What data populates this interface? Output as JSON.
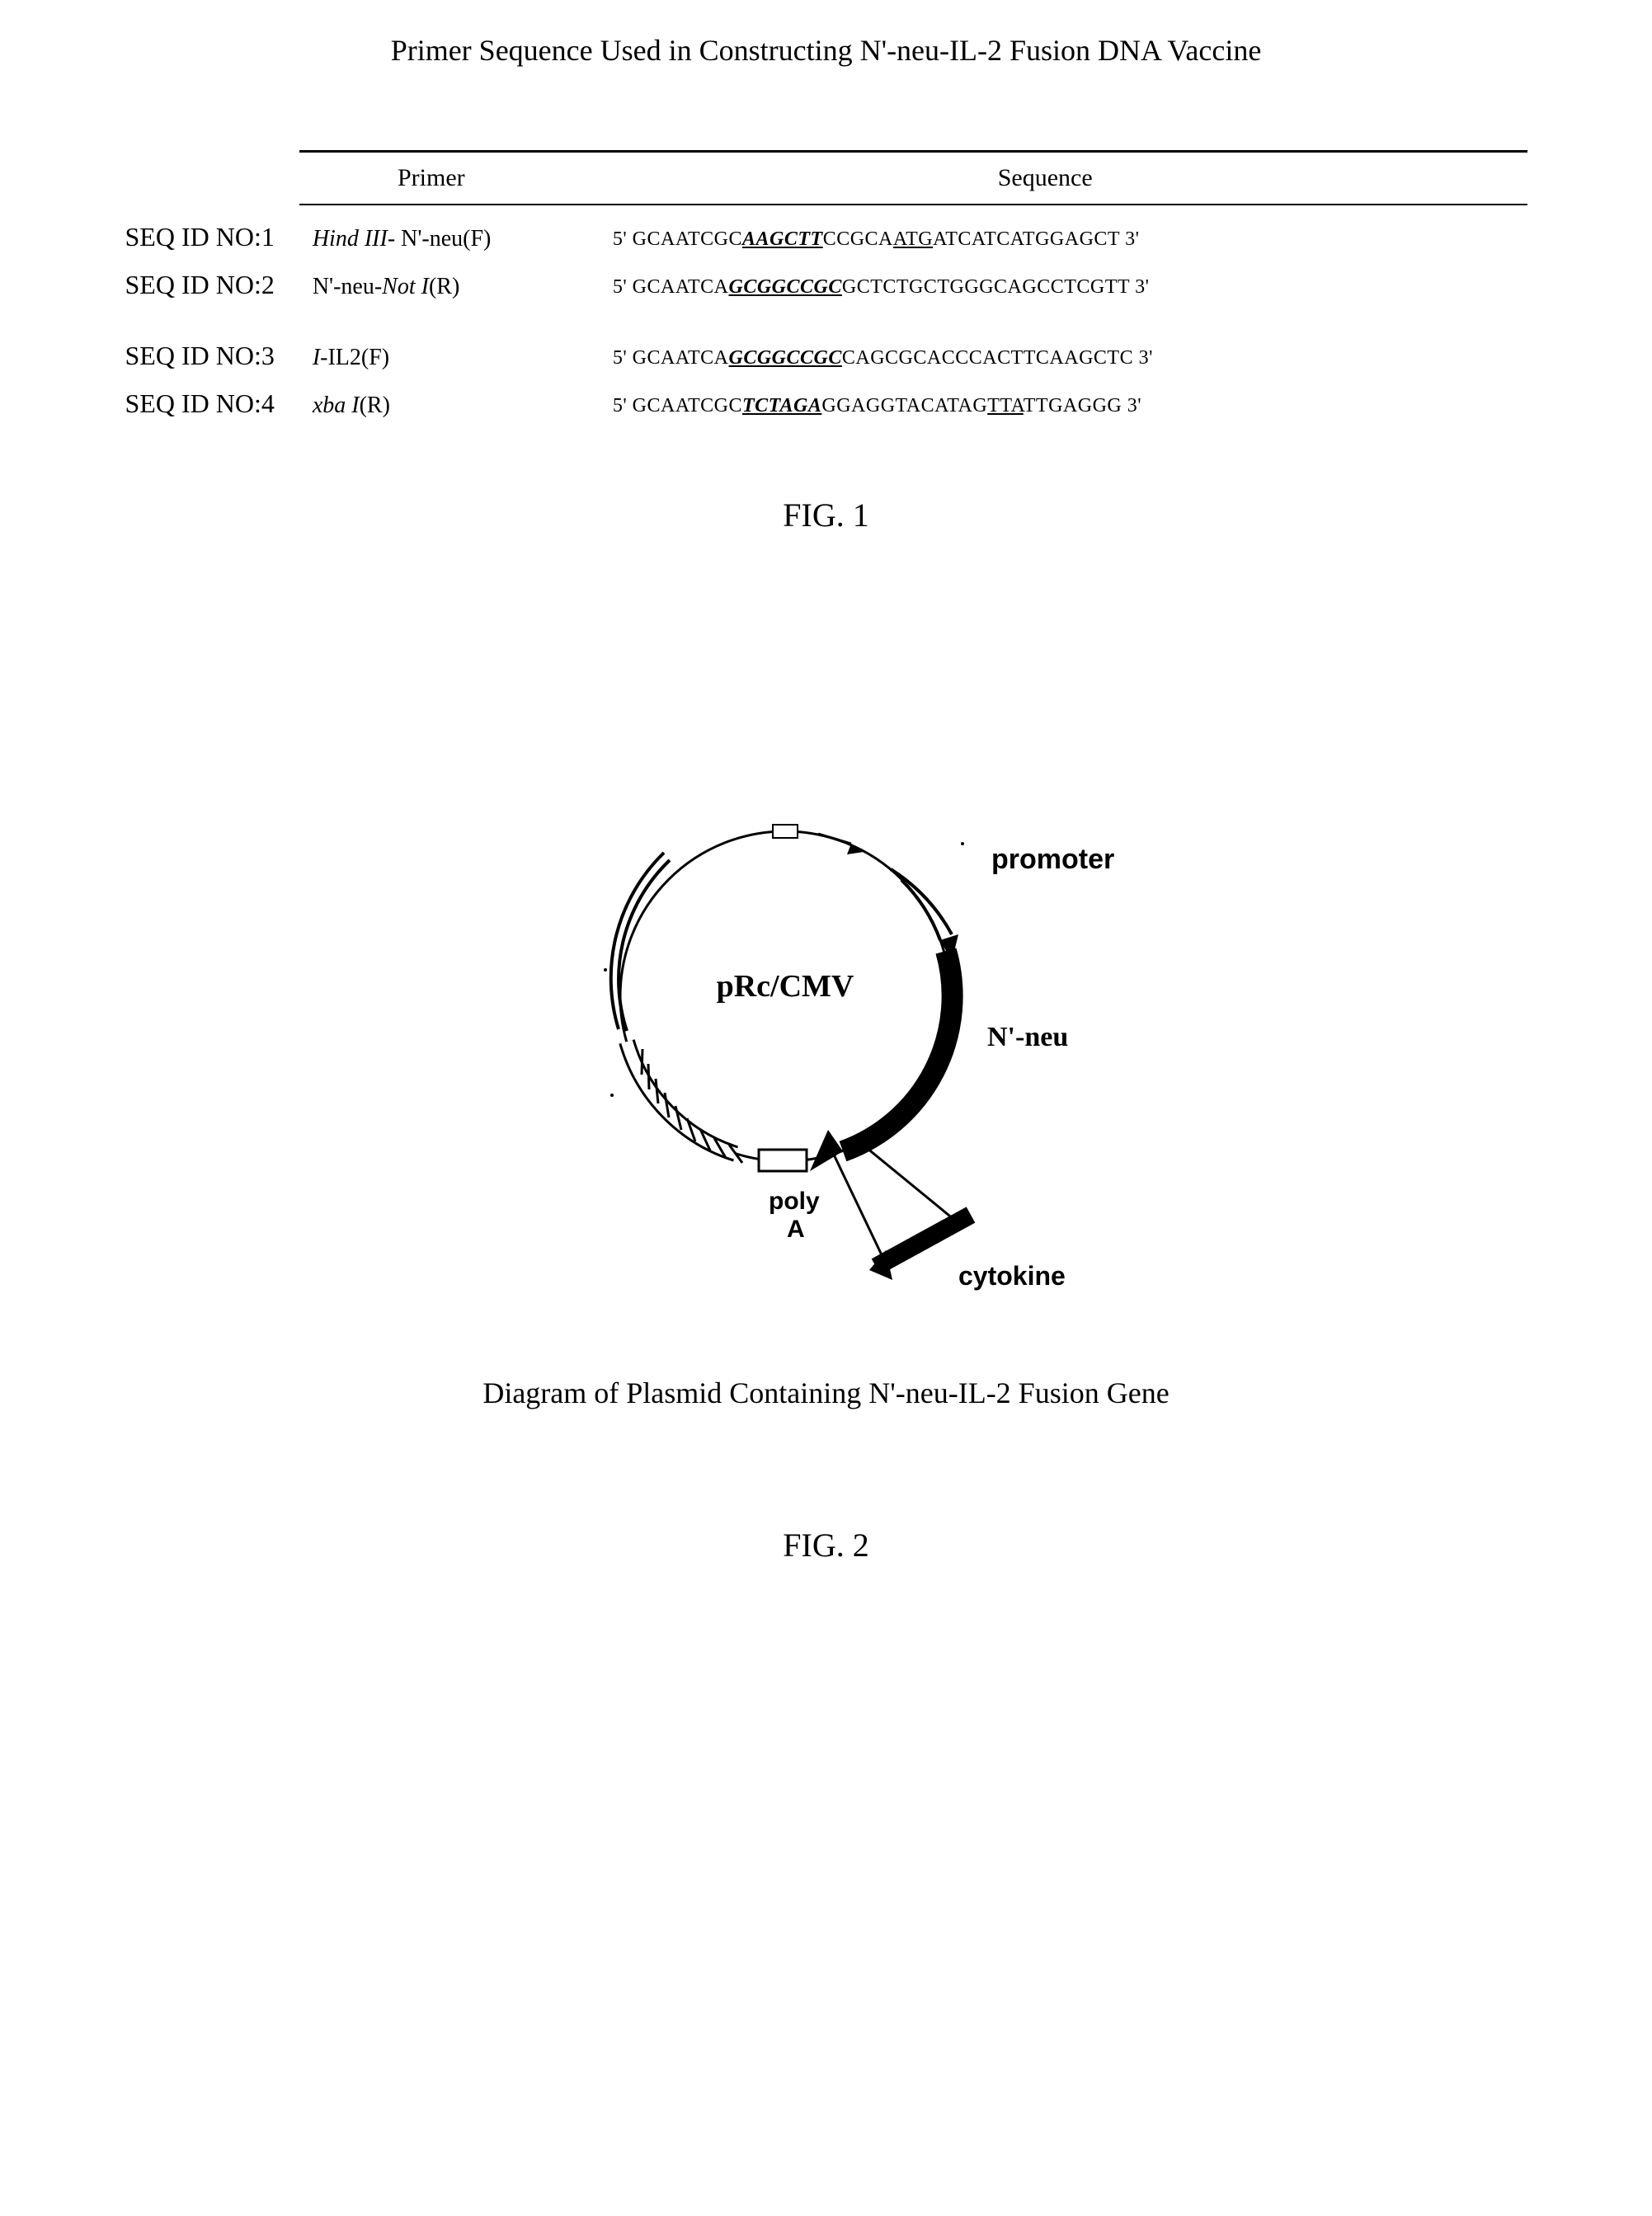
{
  "title": "Primer Sequence Used in Constructing N'-neu-IL-2 Fusion DNA Vaccine",
  "table": {
    "header": {
      "col1": "Primer",
      "col2": "Sequence"
    },
    "seqIds": [
      "SEQ ID NO:1",
      "SEQ ID NO:2",
      "SEQ ID NO:3",
      "SEQ ID NO:4"
    ],
    "rows": [
      {
        "nameSegments": [
          {
            "text": "Hind III",
            "style": "italic"
          },
          {
            "text": "- N'-neu(F)",
            "style": ""
          }
        ],
        "seqSegments": [
          {
            "text": "5' GCAATCGC",
            "style": ""
          },
          {
            "text": "AAGCTT",
            "style": "italic bold underline"
          },
          {
            "text": "CCGCA",
            "style": ""
          },
          {
            "text": "ATG",
            "style": "underline"
          },
          {
            "text": "ATCATCATGGAGCT 3'",
            "style": ""
          }
        ]
      },
      {
        "nameSegments": [
          {
            "text": "N'-neu-",
            "style": ""
          },
          {
            "text": "Not I",
            "style": "italic"
          },
          {
            "text": "(R)",
            "style": ""
          }
        ],
        "seqSegments": [
          {
            "text": "5' GCAATCA",
            "style": ""
          },
          {
            "text": "GCGGCCGC",
            "style": "italic bold underline"
          },
          {
            "text": "GCTCTGCTGGGCAGCCTCGTT 3'",
            "style": ""
          }
        ]
      },
      {
        "nameSegments": [
          {
            "text": "I",
            "style": "italic"
          },
          {
            "text": "-IL2(F)",
            "style": ""
          }
        ],
        "seqSegments": [
          {
            "text": "5' GCAATCA",
            "style": ""
          },
          {
            "text": "GCGGCCGC",
            "style": "italic bold underline"
          },
          {
            "text": "CAGC",
            "style": ""
          },
          {
            "text": "GCACCCACTTCAAGCTC 3'",
            "style": ""
          }
        ]
      },
      {
        "nameSegments": [
          {
            "text": "xba I",
            "style": "italic"
          },
          {
            "text": "(R)",
            "style": ""
          }
        ],
        "seqSegments": [
          {
            "text": "5' GCAATCGC",
            "style": ""
          },
          {
            "text": "TCTAGA",
            "style": "italic bold underline"
          },
          {
            "text": "GGAGGTACATAG",
            "style": ""
          },
          {
            "text": "TTA",
            "style": "underline"
          },
          {
            "text": "TTGAGGG 3'",
            "style": ""
          }
        ]
      }
    ]
  },
  "fig1Label": "FIG. 1",
  "plasmid": {
    "centerLabel": "pRc/CMV",
    "promoterLabel": "promoter",
    "neuLabel": "N'-neu",
    "polyALabel": "poly\nA",
    "cytokineLabel": "cytokine",
    "caption": "Diagram of Plasmid Containing N'-neu-IL-2 Fusion Gene"
  },
  "fig2Label": "FIG. 2",
  "colors": {
    "text": "#000000",
    "bg": "#ffffff",
    "line": "#000000"
  }
}
